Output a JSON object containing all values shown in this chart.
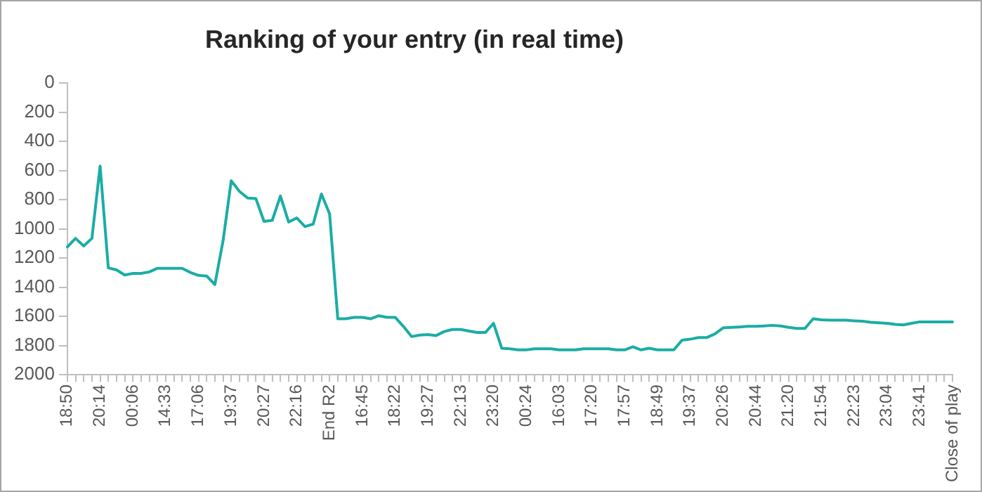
{
  "chart_data": {
    "type": "line",
    "title": "Ranking of your entry (in real time)",
    "categories": [
      "18:50",
      null,
      null,
      null,
      "20:14",
      null,
      null,
      null,
      "00:06",
      null,
      null,
      null,
      "14:33",
      null,
      null,
      null,
      "17:06",
      null,
      null,
      null,
      "19:37",
      null,
      null,
      null,
      "20:27",
      null,
      null,
      null,
      "22:16",
      null,
      null,
      null,
      "End R2",
      null,
      null,
      null,
      "16:45",
      null,
      null,
      null,
      "18:22",
      null,
      null,
      null,
      "19:27",
      null,
      null,
      null,
      "22:13",
      null,
      null,
      null,
      "23:20",
      null,
      null,
      null,
      "00:24",
      null,
      null,
      null,
      "16:03",
      null,
      null,
      null,
      "17:20",
      null,
      null,
      null,
      "17:57",
      null,
      null,
      null,
      "18:49",
      null,
      null,
      null,
      "19:37",
      null,
      null,
      null,
      "20:26",
      null,
      null,
      null,
      "20:44",
      null,
      null,
      null,
      "21:20",
      null,
      null,
      null,
      "21:54",
      null,
      null,
      null,
      "22:23",
      null,
      null,
      null,
      "23:04",
      null,
      null,
      null,
      "23:41",
      null,
      null,
      null,
      "Close of play"
    ],
    "series": [
      {
        "color": "#1aada5",
        "values": [
          1124,
          1065,
          1117,
          1065,
          569,
          1267,
          1281,
          1316,
          1305,
          1305,
          1295,
          1270,
          1270,
          1270,
          1270,
          1298,
          1319,
          1323,
          1382,
          1082,
          670,
          743,
          789,
          792,
          949,
          942,
          775,
          953,
          925,
          984,
          967,
          761,
          897,
          1616,
          1616,
          1606,
          1606,
          1616,
          1595,
          1606,
          1606,
          1668,
          1738,
          1728,
          1724,
          1731,
          1703,
          1689,
          1689,
          1700,
          1710,
          1710,
          1647,
          1818,
          1822,
          1829,
          1829,
          1822,
          1822,
          1822,
          1829,
          1829,
          1829,
          1822,
          1822,
          1822,
          1822,
          1829,
          1829,
          1808,
          1829,
          1818,
          1829,
          1829,
          1829,
          1763,
          1756,
          1745,
          1745,
          1720,
          1679,
          1675,
          1672,
          1668,
          1668,
          1665,
          1661,
          1665,
          1675,
          1682,
          1682,
          1616,
          1623,
          1626,
          1626,
          1626,
          1630,
          1633,
          1640,
          1644,
          1647,
          1654,
          1658,
          1647,
          1637,
          1637,
          1637,
          1637,
          1637
        ]
      }
    ],
    "ylim": [
      2000,
      0
    ],
    "yticks": [
      0,
      200,
      400,
      600,
      800,
      1000,
      1200,
      1400,
      1600,
      1800,
      2000
    ],
    "grid": false,
    "legend": false,
    "marker": "none",
    "line_style": "solid"
  }
}
